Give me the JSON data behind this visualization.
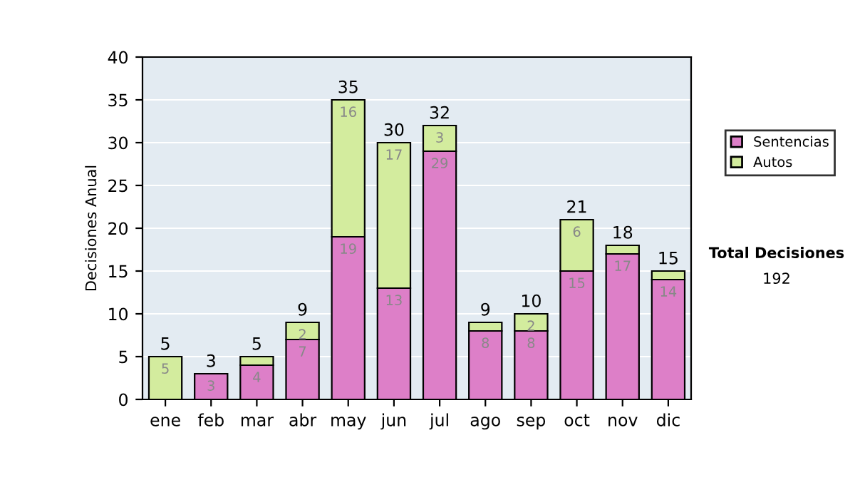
{
  "chart_data": {
    "type": "bar",
    "stacked": true,
    "ylabel": "Decisiones Anual",
    "categories": [
      "ene",
      "feb",
      "mar",
      "abr",
      "may",
      "jun",
      "jul",
      "ago",
      "sep",
      "oct",
      "nov",
      "dic"
    ],
    "series": [
      {
        "name": "Sentencias",
        "color": "#dd7fc8",
        "values": [
          0,
          3,
          4,
          7,
          19,
          13,
          29,
          8,
          8,
          15,
          17,
          14
        ],
        "value_labels": [
          null,
          "3",
          "4",
          "7",
          "19",
          "13",
          "29",
          "8",
          "8",
          "15",
          "17",
          "14"
        ]
      },
      {
        "name": "Autos",
        "color": "#d3ec9e",
        "values": [
          5,
          0,
          1,
          2,
          16,
          17,
          3,
          1,
          2,
          6,
          1,
          1
        ],
        "value_labels": [
          "5",
          null,
          null,
          "2",
          "16",
          "17",
          "3",
          null,
          "2",
          "6",
          null,
          null
        ]
      }
    ],
    "totals": [
      "5",
      "3",
      "5",
      "9",
      "35",
      "30",
      "32",
      "9",
      "10",
      "21",
      "18",
      "15"
    ],
    "ylim": [
      0,
      40
    ],
    "yticks": [
      0,
      5,
      10,
      15,
      20,
      25,
      30,
      35,
      40
    ],
    "grid": "y",
    "legend": "right",
    "annotations": [
      "Total Decisiones",
      "192"
    ]
  }
}
